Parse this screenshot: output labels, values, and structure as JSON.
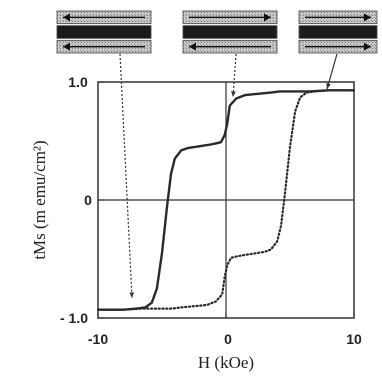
{
  "chart_data": {
    "type": "line",
    "title": "",
    "xlabel": "H (kOe)",
    "ylabel": "tMs (m emu/cm²)",
    "xlim": [
      -10,
      10
    ],
    "ylim": [
      -1.0,
      1.0
    ],
    "x_ticks": [
      "-10",
      "0",
      "10"
    ],
    "y_ticks": [
      "1.0",
      "0",
      "- 1.0"
    ],
    "grid": false,
    "series": [
      {
        "style": "solid",
        "x": [
          -10,
          -8,
          -7,
          -6.3,
          -5.8,
          -5.4,
          -5.0,
          -4.6,
          -4.3,
          -4.0,
          -3.5,
          -3.0,
          -2.4,
          -1.8,
          -1.2,
          -0.8,
          -0.4,
          -0.1,
          0.1,
          0.3,
          0.8,
          1.5,
          2.5,
          3.5,
          4.2,
          4.8,
          5.5,
          6.5,
          8,
          10
        ],
        "y": [
          -0.93,
          -0.93,
          -0.92,
          -0.91,
          -0.87,
          -0.75,
          -0.45,
          -0.05,
          0.22,
          0.35,
          0.42,
          0.44,
          0.45,
          0.46,
          0.47,
          0.48,
          0.49,
          0.55,
          0.65,
          0.8,
          0.86,
          0.89,
          0.9,
          0.91,
          0.92,
          0.92,
          0.92,
          0.92,
          0.93,
          0.93
        ]
      },
      {
        "style": "dotted",
        "x": [
          10,
          8,
          7,
          6.3,
          5.8,
          5.4,
          5.0,
          4.6,
          4.3,
          4.0,
          3.5,
          3.0,
          2.4,
          1.8,
          1.2,
          0.8,
          0.4,
          0.1,
          -0.1,
          -0.3,
          -0.8,
          -1.5,
          -2.5,
          -3.5,
          -4.2,
          -4.8,
          -5.5,
          -6.5,
          -8,
          -10
        ],
        "y": [
          0.93,
          0.93,
          0.92,
          0.91,
          0.87,
          0.75,
          0.45,
          0.05,
          -0.22,
          -0.35,
          -0.42,
          -0.44,
          -0.45,
          -0.46,
          -0.47,
          -0.48,
          -0.49,
          -0.55,
          -0.65,
          -0.8,
          -0.86,
          -0.89,
          -0.9,
          -0.91,
          -0.92,
          -0.92,
          -0.92,
          -0.92,
          -0.93,
          -0.93
        ]
      }
    ],
    "insets": [
      {
        "top": "left",
        "bottom": "left"
      },
      {
        "top": "right",
        "bottom": "left"
      },
      {
        "top": "right",
        "bottom": "right"
      }
    ]
  }
}
